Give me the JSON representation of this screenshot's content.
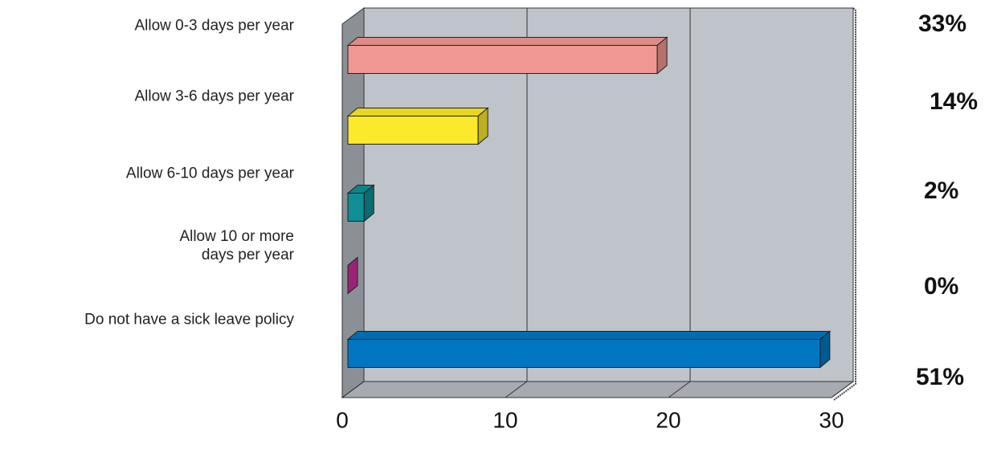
{
  "chart_data": {
    "type": "hbar3d",
    "categories": [
      "Allow 0-3 days per year",
      "Allow 3-6 days per year",
      "Allow 6-10 days per year",
      "Allow 10 or more \ndays per year",
      "Do not have a sick leave policy"
    ],
    "values": [
      19,
      8,
      1,
      0,
      29
    ],
    "colors": [
      "#f09793",
      "#fbe92b",
      "#0f8e95",
      "#cf2f9f",
      "#0077c0"
    ],
    "percent_labels": [
      "33%",
      "14%",
      "2%",
      "0%",
      "51%"
    ],
    "xlim": [
      0,
      30
    ],
    "xticks": [
      0,
      10,
      20,
      30
    ],
    "grid": true
  }
}
